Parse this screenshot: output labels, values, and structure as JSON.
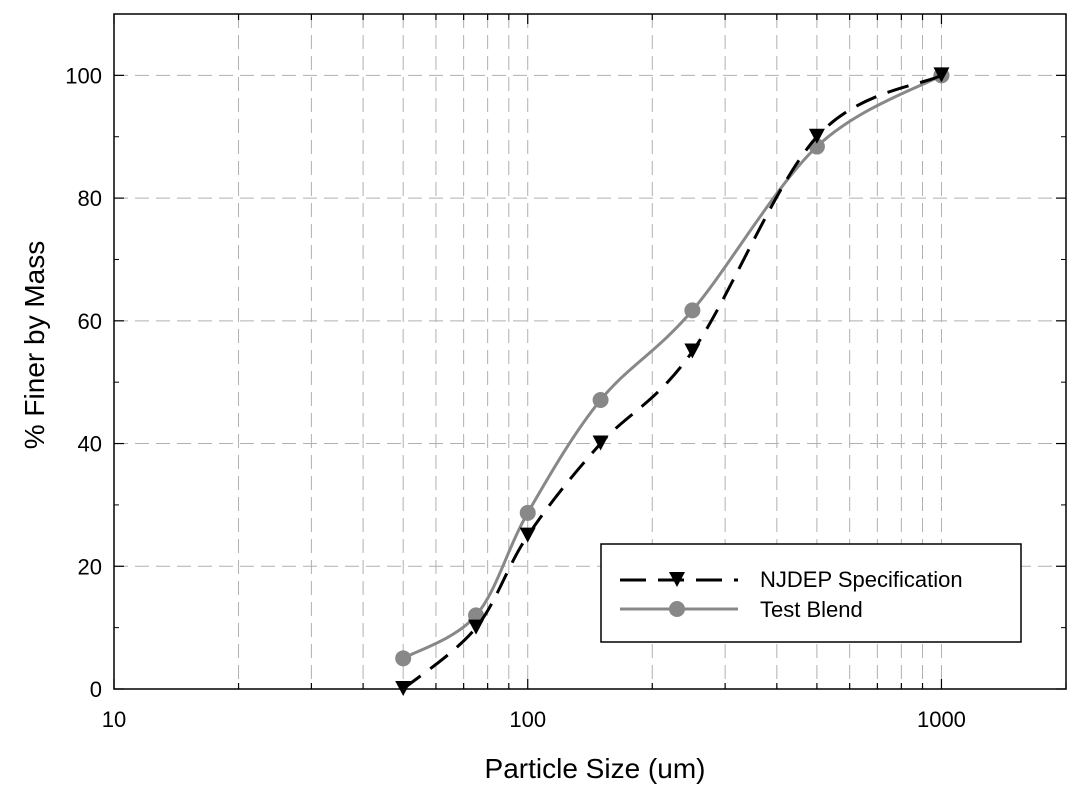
{
  "chart_data": {
    "type": "line",
    "title": "",
    "xlabel": "Particle Size (um)",
    "ylabel": "% Finer by Mass",
    "x_scale": "log",
    "xlim": [
      10,
      2000
    ],
    "ylim": [
      0,
      110
    ],
    "x_ticks": [
      10,
      100,
      1000
    ],
    "y_ticks": [
      0,
      20,
      40,
      60,
      80,
      100
    ],
    "grid": true,
    "legend_position": "lower-right",
    "series": [
      {
        "name": "NJDEP Specification",
        "style": "dashed",
        "marker": "triangle-down",
        "color": "#000000",
        "x": [
          50,
          75,
          100,
          150,
          250,
          500,
          1000
        ],
        "y": [
          0,
          10,
          25,
          40,
          55,
          90,
          100
        ]
      },
      {
        "name": "Test Blend",
        "style": "solid",
        "marker": "circle",
        "color": "#888888",
        "x": [
          50,
          75,
          100,
          150,
          250,
          500,
          1000
        ],
        "y": [
          5,
          12,
          28.7,
          47.1,
          61.7,
          88.4,
          100
        ]
      }
    ]
  }
}
